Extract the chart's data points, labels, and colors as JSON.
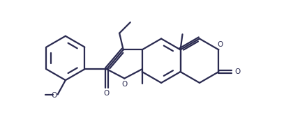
{
  "background_color": "#ffffff",
  "line_color": "#2a2a50",
  "line_width": 1.6,
  "fig_width": 4.3,
  "fig_height": 1.78,
  "dpi": 100,
  "xlim": [
    -1.0,
    10.5
  ],
  "ylim": [
    -1.5,
    3.2
  ]
}
